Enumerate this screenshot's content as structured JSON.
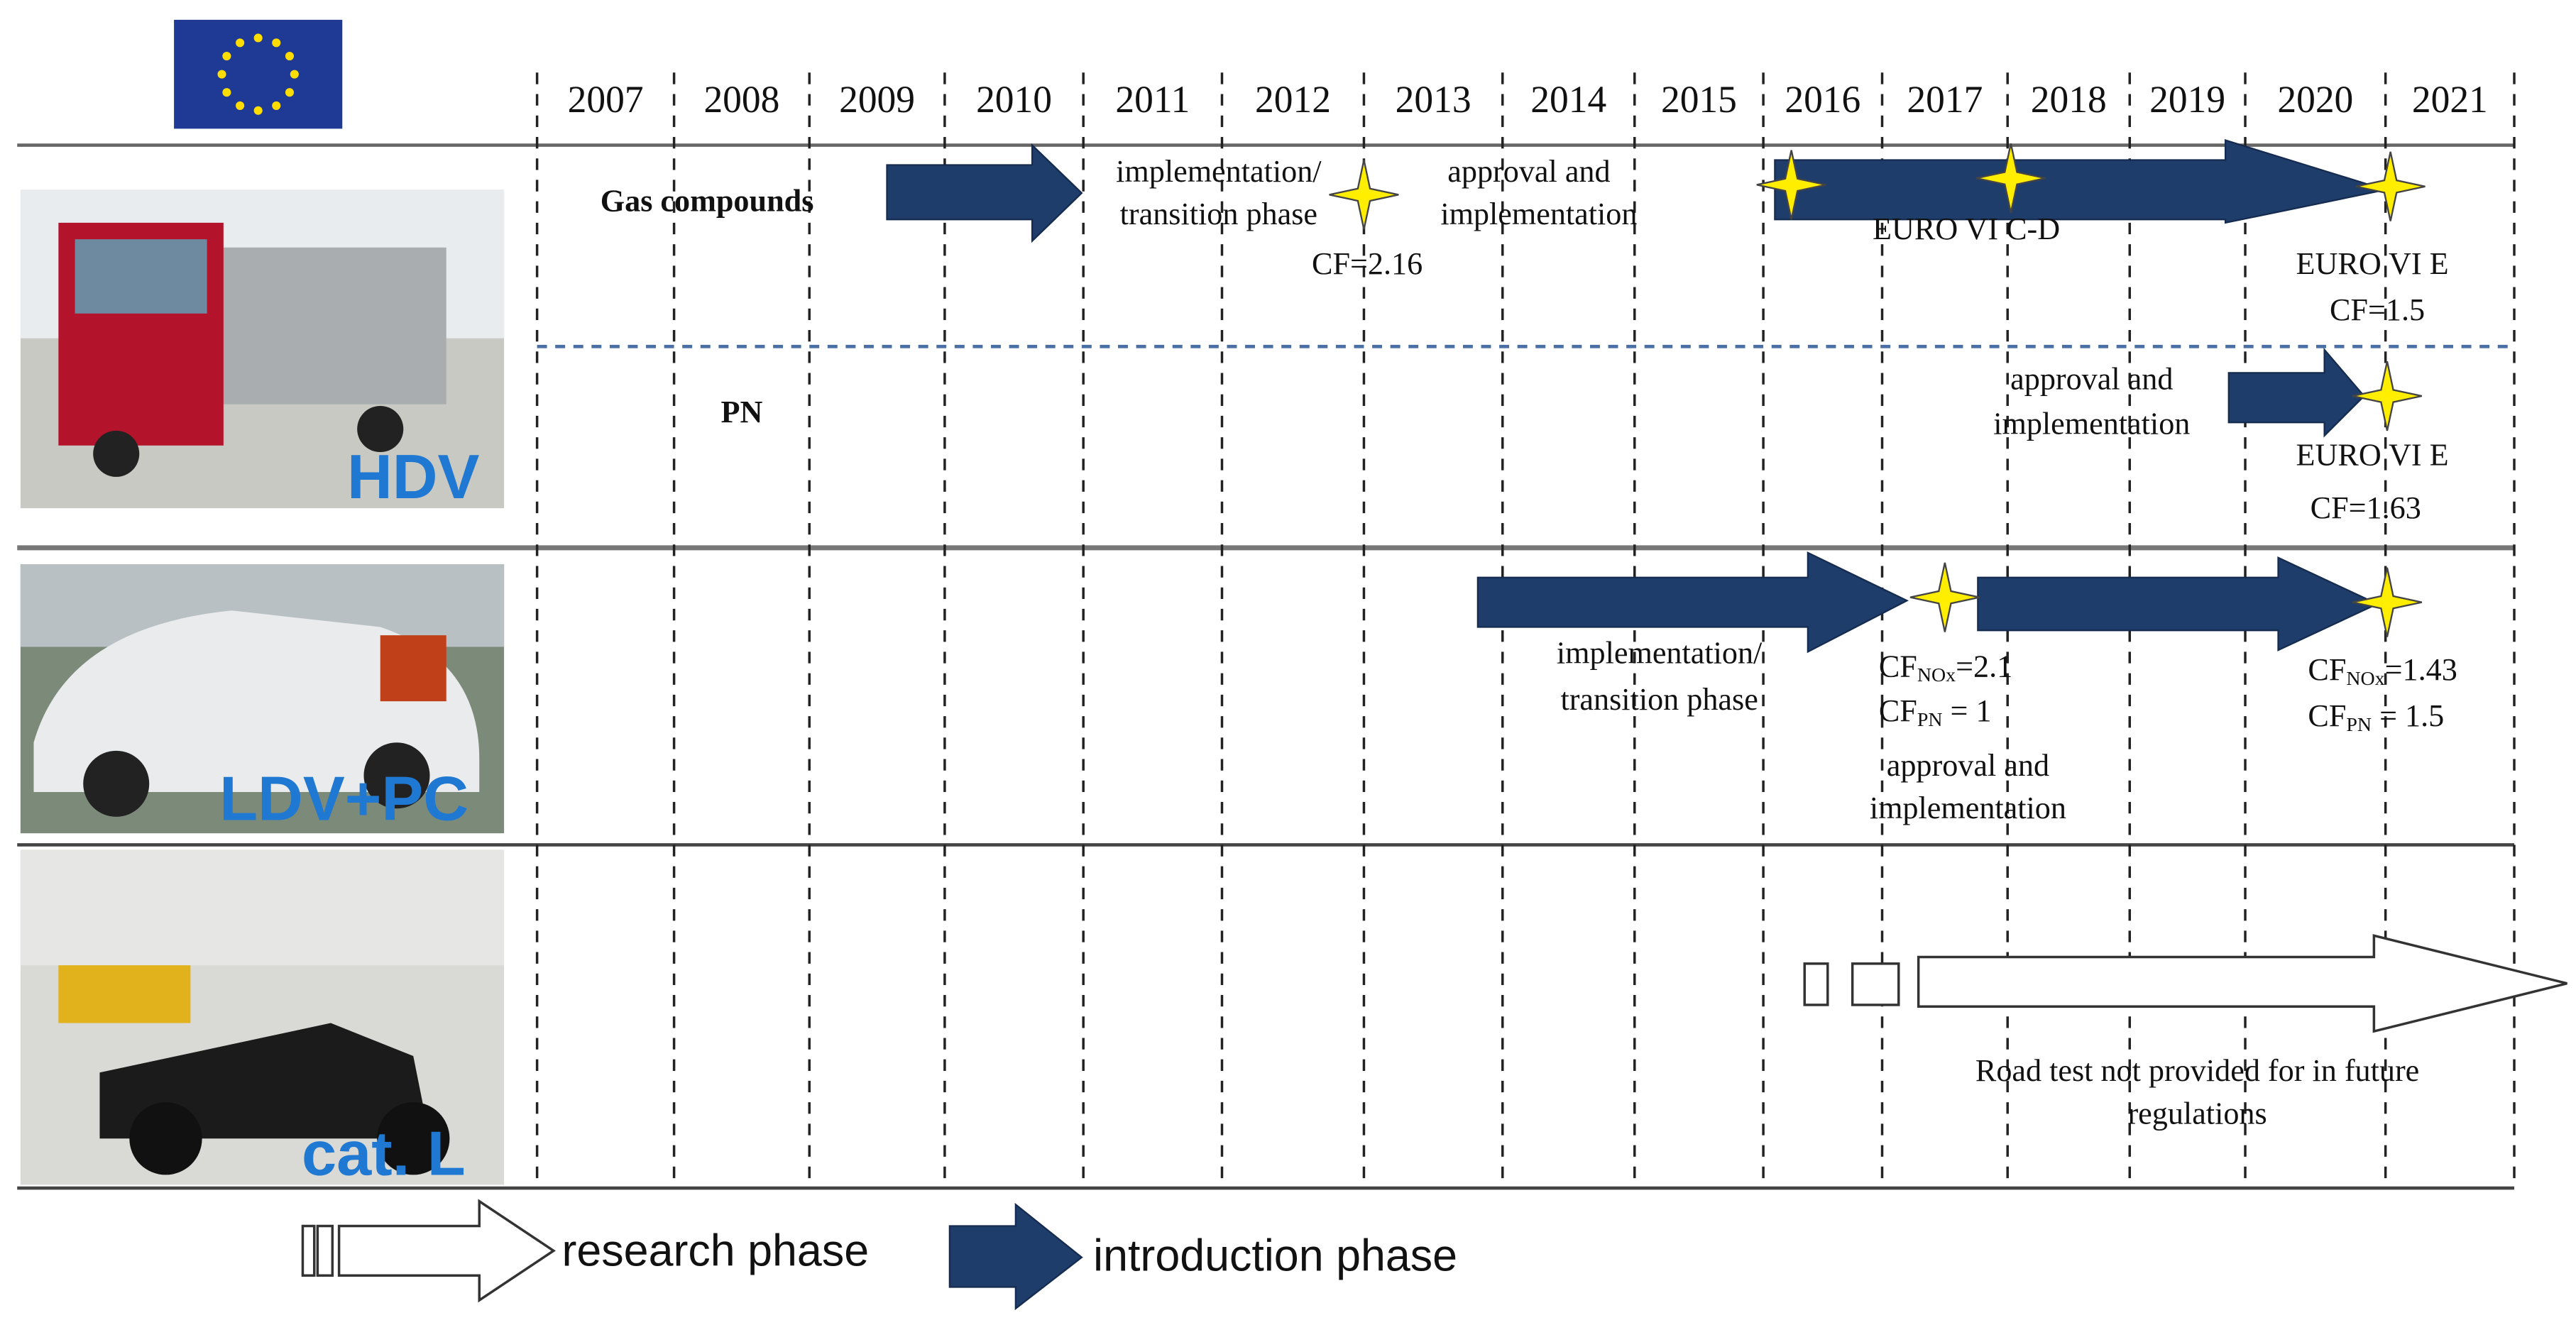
{
  "years": [
    "2007",
    "2008",
    "2009",
    "2010",
    "2011",
    "2012",
    "2013",
    "2014",
    "2015",
    "2016",
    "2017",
    "2018",
    "2019",
    "2020",
    "2021"
  ],
  "rows": {
    "hdv": {
      "label": "HDV",
      "gas": "Gas compounds",
      "pn": "PN",
      "notes": [
        "implementation/",
        "transition phase",
        "approval and",
        "implementation",
        "CF=2.16",
        "EURO VI C-D",
        "EURO VI E",
        "CF=1.5",
        "approval and",
        "implementation",
        "EURO VI E",
        "CF=1.63"
      ]
    },
    "ldv": {
      "label": "LDV+PC",
      "notes": [
        "implementation/",
        "transition phase",
        "approval and",
        "implementation"
      ],
      "cf": [
        {
          "main": "CF",
          "sub": "NOx",
          "rest": "=2.1"
        },
        {
          "main": "CF",
          "sub": "PN",
          "rest": " = 1"
        },
        {
          "main": "CF",
          "sub": "NOx",
          "rest": "=1.43"
        },
        {
          "main": "CF",
          "sub": "PN",
          "rest": " = 1.5"
        }
      ]
    },
    "catl": {
      "label": "cat. L",
      "notes": [
        "Road test not provided for in future",
        "regulations"
      ]
    }
  },
  "legend": [
    "research phase",
    "introduction phase"
  ]
}
